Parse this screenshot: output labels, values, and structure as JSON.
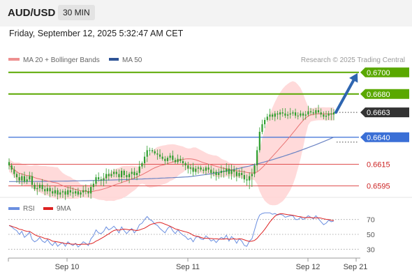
{
  "header": {
    "symbol": "AUD/USD",
    "timeframe": "30 MIN",
    "datetime": "Friday, September 12, 2025 5:32:47 AM CET"
  },
  "legend": {
    "ma20": "MA 20 + Bollinger Bands",
    "ma50": "MA 50",
    "copyright": "Research © 2025 Trading Central",
    "rsi": "RSI",
    "rsi_ma": "9MA"
  },
  "colors": {
    "candle": "#2e9e2e",
    "level_target": "#5aa800",
    "level_support": "#3a6fd6",
    "level_lower": "#e05050",
    "ma20": "#e87272",
    "band_fill": "#ffd3d3",
    "ma50": "#6b84c4",
    "arrow": "#2e65b0",
    "rsi_line": "#6b8fe0",
    "rsi_ma": "#dd2222"
  },
  "chart_data": [
    {
      "type": "candlestick",
      "title": "AUD/USD 30 MIN",
      "x_tick_labels": [
        "Sep 10",
        "Sep 11",
        "Sep 12",
        "Sep 21"
      ],
      "ylim": [
        0.6585,
        0.6705
      ],
      "current_price": 0.6663,
      "levels": [
        {
          "value": 0.67,
          "label": "0.6700",
          "kind": "target"
        },
        {
          "value": 0.668,
          "label": "0.6680",
          "kind": "target"
        },
        {
          "value": 0.6663,
          "label": "0.6663",
          "kind": "current"
        },
        {
          "value": 0.664,
          "label": "0.6640",
          "kind": "support"
        },
        {
          "value": 0.6615,
          "label": "0.6615",
          "kind": "lower"
        },
        {
          "value": 0.6595,
          "label": "0.6595",
          "kind": "lower"
        }
      ],
      "close_series": [
        0.6614,
        0.661,
        0.6606,
        0.6603,
        0.66,
        0.6604,
        0.6599,
        0.6601,
        0.6604,
        0.6596,
        0.6592,
        0.6593,
        0.6596,
        0.6592,
        0.659,
        0.6593,
        0.659,
        0.6588,
        0.6591,
        0.6587,
        0.6589,
        0.659,
        0.6587,
        0.6591,
        0.6589,
        0.6588,
        0.659,
        0.6587,
        0.6589,
        0.6591,
        0.659,
        0.6588,
        0.6594,
        0.6597,
        0.6603,
        0.6601,
        0.66,
        0.6602,
        0.6606,
        0.6604,
        0.6606,
        0.6608,
        0.6606,
        0.6603,
        0.6609,
        0.6605,
        0.6603,
        0.6606,
        0.6608,
        0.6605,
        0.6607,
        0.6613,
        0.6616,
        0.6622,
        0.6628,
        0.6628,
        0.6627,
        0.6625,
        0.6624,
        0.6622,
        0.662,
        0.6618,
        0.6621,
        0.6623,
        0.6619,
        0.6617,
        0.662,
        0.6618,
        0.6616,
        0.6614,
        0.6611,
        0.6612,
        0.6608,
        0.6611,
        0.6612,
        0.661,
        0.6609,
        0.6612,
        0.661,
        0.6607,
        0.6608,
        0.6605,
        0.6607,
        0.6609,
        0.6608,
        0.6611,
        0.6606,
        0.661,
        0.6608,
        0.6604,
        0.6607,
        0.6605,
        0.6601,
        0.66,
        0.6604,
        0.6606,
        0.6614,
        0.6628,
        0.6645,
        0.6652,
        0.6656,
        0.6659,
        0.6661,
        0.6659,
        0.6662,
        0.6661,
        0.6663,
        0.6662,
        0.666,
        0.6661,
        0.6662,
        0.6663,
        0.666,
        0.666,
        0.6662,
        0.666,
        0.6661,
        0.6664,
        0.6663,
        0.6662,
        0.6665,
        0.6663,
        0.6661,
        0.6659,
        0.666,
        0.6662,
        0.6661,
        0.6663
      ],
      "ma50_start": 0.6599,
      "ma50_end": 0.664,
      "forecast_arrow": {
        "from": 0.6663,
        "to": 0.67
      }
    },
    {
      "type": "line",
      "title": "RSI",
      "series": [
        {
          "name": "RSI"
        },
        {
          "name": "9MA"
        }
      ],
      "y_tick_labels": [
        "70",
        "50",
        "30"
      ],
      "ylim": [
        20,
        80
      ],
      "rsi": [
        62,
        60,
        57,
        55,
        50,
        54,
        46,
        49,
        53,
        43,
        40,
        42,
        46,
        41,
        39,
        43,
        38,
        35,
        40,
        34,
        37,
        39,
        34,
        40,
        37,
        35,
        38,
        33,
        36,
        40,
        38,
        35,
        44,
        48,
        56,
        52,
        51,
        54,
        60,
        56,
        58,
        61,
        57,
        52,
        60,
        55,
        51,
        55,
        58,
        52,
        56,
        63,
        65,
        70,
        74,
        70,
        68,
        64,
        62,
        58,
        55,
        52,
        58,
        61,
        55,
        51,
        56,
        52,
        49,
        47,
        43,
        45,
        40,
        46,
        47,
        44,
        43,
        48,
        45,
        41,
        43,
        39,
        43,
        46,
        44,
        49,
        41,
        47,
        44,
        38,
        44,
        41,
        35,
        34,
        41,
        44,
        56,
        68,
        76,
        78,
        79,
        79,
        79,
        77,
        78,
        76,
        77,
        76,
        73,
        74,
        75,
        75,
        70,
        70,
        73,
        70,
        72,
        75,
        73,
        71,
        75,
        71,
        67,
        63,
        65,
        69,
        67,
        68
      ]
    }
  ]
}
